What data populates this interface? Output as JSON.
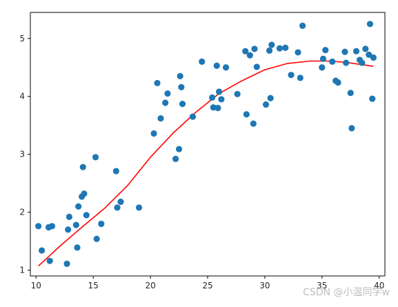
{
  "watermark": "CSDN @小温同学w",
  "chart_data": {
    "type": "scatter",
    "xlim": [
      9.5,
      40.5
    ],
    "ylim": [
      0.9,
      5.45
    ],
    "xticks": [
      10,
      15,
      20,
      25,
      30,
      35,
      40
    ],
    "yticks": [
      1,
      2,
      3,
      4,
      5
    ],
    "grid": false,
    "point_color": "#1f77b4",
    "line_color": "#ff0000",
    "series": [
      {
        "kind": "points",
        "x": [
          10.2,
          10.5,
          11.1,
          11.2,
          11.4,
          12.7,
          12.8,
          12.9,
          13.5,
          13.6,
          13.7,
          14.0,
          14.1,
          14.2,
          14.4,
          15.2,
          15.3,
          15.7,
          17.0,
          17.1,
          17.4,
          19.0,
          20.3,
          20.6,
          20.9,
          21.3,
          21.5,
          22.2,
          22.5,
          22.6,
          22.7,
          22.8,
          23.7,
          24.5,
          25.4,
          25.5,
          25.8,
          25.9,
          26.0,
          26.2,
          26.6,
          27.6,
          28.3,
          28.4,
          28.7,
          29.0,
          29.1,
          29.3,
          30.1,
          30.4,
          30.5,
          30.6,
          31.3,
          31.8,
          32.3,
          32.9,
          33.1,
          33.3,
          35.0,
          35.1,
          35.3,
          35.9,
          36.2,
          36.4,
          37.0,
          37.1,
          37.5,
          37.6,
          38.0,
          38.3,
          38.8,
          39.2,
          39.4,
          39.5,
          39.1,
          38.5
        ],
        "y": [
          1.76,
          1.34,
          1.74,
          1.16,
          1.76,
          1.11,
          1.7,
          1.92,
          1.78,
          1.39,
          2.1,
          2.27,
          2.78,
          2.32,
          1.95,
          2.95,
          1.54,
          1.8,
          2.71,
          2.08,
          2.18,
          2.08,
          3.36,
          4.23,
          3.62,
          3.89,
          4.05,
          2.92,
          3.09,
          4.35,
          4.16,
          3.87,
          3.65,
          4.6,
          3.98,
          3.81,
          4.53,
          3.8,
          4.08,
          3.95,
          4.5,
          4.04,
          4.78,
          3.69,
          4.71,
          3.53,
          4.82,
          4.51,
          3.86,
          4.79,
          3.97,
          4.89,
          4.83,
          4.84,
          4.37,
          4.76,
          4.32,
          5.22,
          4.5,
          4.65,
          4.8,
          4.6,
          4.27,
          4.24,
          4.77,
          4.58,
          4.06,
          3.45,
          4.78,
          4.63,
          4.82,
          5.25,
          3.96,
          4.67,
          4.72,
          4.58
        ]
      },
      {
        "kind": "fit-curve",
        "x": [
          10.2,
          12,
          14,
          16,
          18,
          20,
          22,
          24,
          26,
          28,
          30,
          32,
          34,
          35.5,
          37,
          39.5
        ],
        "y": [
          1.07,
          1.4,
          1.74,
          2.07,
          2.46,
          2.95,
          3.37,
          3.73,
          4.05,
          4.27,
          4.46,
          4.57,
          4.61,
          4.61,
          4.59,
          4.52
        ]
      }
    ]
  }
}
